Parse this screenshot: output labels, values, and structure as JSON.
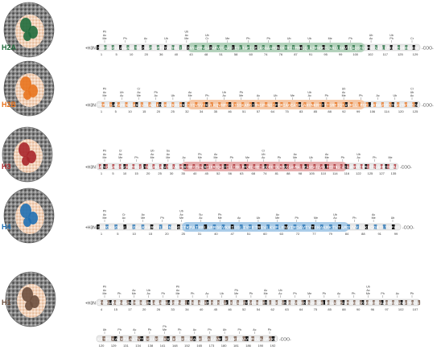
{
  "histones": [
    {
      "id": "h2a",
      "label": "H2A",
      "color": "#1f6b3c",
      "light": "#a9cdb3",
      "sequence": "SGRGKQGGKARAKAKTRSSRAGLQFPVGRVHRLLRKGNYAERVGAGAPVYLAAVLEYLTAEILELAGNAARDNKKTRIIPRHLQLAIRNDEELNKLLGKVTIAQGGVLPNIQAVLLPKKTESHHKAKGK",
      "numbers": [
        "1",
        "5",
        "10",
        "20",
        "36",
        "40",
        "43",
        "48",
        "51",
        "58",
        "60",
        "74",
        "76",
        "87",
        "91",
        "95",
        "99",
        "100",
        "102",
        "117",
        "125",
        "129"
      ],
      "mods": [
        [
          "Me",
          "Ac",
          "Ph"
        ],
        [
          "Ph"
        ],
        [
          "Ac"
        ],
        [
          "Ub"
        ],
        [
          "Me",
          "Ac",
          "Ub"
        ],
        [
          "Cr",
          "Ub"
        ],
        [
          "Me"
        ],
        [
          "Ph"
        ],
        [
          "Ph"
        ],
        [
          "Ub"
        ],
        [
          "Ub"
        ],
        [
          "Me"
        ],
        [
          "Ph"
        ],
        [
          "Ac",
          "Ub"
        ],
        [
          "Ph",
          "Ub"
        ],
        [
          "Cr"
        ]
      ],
      "nterm": "+H3N",
      "cterm": "-COO-"
    },
    {
      "id": "h2b",
      "label": "H2B",
      "color": "#e8731d",
      "light": "#f6c29b",
      "sequence": "PEPAKSAPAPKKGSKKAVTKAQKKDGKKRKRSRKESYSVYVYKVLKQVHPDTGISSKAMGIMNSFVNDIFERIAGEASRLAHYNKRSTITSREIQTAVRLLLPGELAKHAVSEGTKAVTKYTSSK",
      "numbers": [
        "1",
        "5",
        "10",
        "15",
        "20",
        "25",
        "32",
        "34",
        "35",
        "46",
        "51",
        "57",
        "64",
        "75",
        "83",
        "85",
        "88",
        "92",
        "99",
        "106",
        "114",
        "120",
        "125"
      ],
      "mods": [
        [
          "Me",
          "Ac",
          "Ph"
        ],
        [
          "Ac",
          "Ub"
        ],
        [
          "Me",
          "Ac",
          "Cr"
        ],
        [
          "Ac",
          "Ph"
        ],
        [
          "Ub"
        ],
        [
          "Me",
          "Ac"
        ],
        [
          "Ph"
        ],
        [
          "Ac",
          "Ub"
        ],
        [
          "Me",
          "Ph"
        ],
        [
          "Ac"
        ],
        [
          "Ub"
        ],
        [
          "Me"
        ],
        [
          "Ac",
          "Ub"
        ],
        [
          "Ph"
        ],
        [
          "Me",
          "Ac",
          "Ub"
        ],
        [
          "Ph"
        ],
        [
          "Ac"
        ],
        [
          "Ub"
        ],
        [
          "Ac",
          "Ub",
          "Cr"
        ]
      ],
      "nterm": "+H3N",
      "cterm": "-COO-"
    },
    {
      "id": "h3",
      "label": "H3",
      "color": "#a8262b",
      "light": "#e3a3a3",
      "sequence": "ARTKQTARKSTGGKAPRKQLATKAARKSAPATGGVKKPHRYRPGTVALREIRRYQKSTELLIRKLPFQRLVREIAQDFKTDLRFQSSAVMALQEASEAYLVGLFEDTNLCAIHAKRVTIMPKDIQLARRIRGERA",
      "numbers": [
        "1",
        "5",
        "10",
        "15",
        "20",
        "25",
        "30",
        "35",
        "40",
        "45",
        "52",
        "56",
        "63",
        "68",
        "74",
        "81",
        "88",
        "98",
        "105",
        "110",
        "114",
        "116",
        "122",
        "125",
        "127",
        "135"
      ],
      "mods": [
        [
          "Me",
          "Ac",
          "Ph"
        ],
        [
          "Me",
          "Ac",
          "Cr"
        ],
        [
          "Ph"
        ],
        [
          "Me",
          "Ac",
          "Ub"
        ],
        [
          "Me",
          "Ac",
          "Su"
        ],
        [
          "Ac"
        ],
        [
          "Me",
          "Ph"
        ],
        [
          "Me",
          "Ac"
        ],
        [
          "Ph"
        ],
        [
          "Me"
        ],
        [
          "Ac",
          "Ub",
          "Cr"
        ],
        [
          "Ph"
        ],
        [
          "Me",
          "Ac"
        ],
        [
          "Ub"
        ],
        [
          "Me",
          "Ac"
        ],
        [
          "Ph"
        ],
        [
          "Ac",
          "Ub"
        ],
        [
          "Ph"
        ],
        [
          "Me"
        ]
      ],
      "nterm": "+H3N",
      "cterm": "-COO-"
    },
    {
      "id": "h4",
      "label": "H4",
      "color": "#1f6fb2",
      "light": "#9ec6e6",
      "sequence": "SGRGKGGKGLGKGGAKRHRKVLRDNIQGITKPAIRRLARRGGVKRISGLIYEETRGVLKVFLENVIRDAVTYTEHAKRKTVTAMDVVYALKRQGRTLYGFGG",
      "numbers": [
        "1",
        "5",
        "10",
        "15",
        "20",
        "25",
        "31",
        "40",
        "47",
        "51",
        "60",
        "63",
        "72",
        "77",
        "79",
        "84",
        "88",
        "91",
        "99"
      ],
      "mods": [
        [
          "Me",
          "Ac",
          "Ph"
        ],
        [
          "Ac",
          "Cr"
        ],
        [
          "Me",
          "Ac"
        ],
        [
          "Ph"
        ],
        [
          "Me",
          "Ac",
          "Ub"
        ],
        [
          "Ac",
          "Su"
        ],
        [
          "Me",
          "Ph"
        ],
        [
          "Ac"
        ],
        [
          "Ub"
        ],
        [
          "Me",
          "Ac"
        ],
        [
          "Ph"
        ],
        [
          "Me"
        ],
        [
          "Ac",
          "Ub"
        ],
        [
          "Ph"
        ],
        [
          "Me",
          "Ac"
        ],
        [
          "Ub"
        ]
      ],
      "nterm": "+H3N",
      "cterm": "-COO-"
    },
    {
      "id": "h1",
      "label": "H1",
      "color": "#6b4e3d",
      "light": "#b9a192",
      "sequence": "SETAPAAPAAPAPAEKTPVKKKARKSAGAAKRKASGPPVSELITKAVAASKERSGVSLAALKKALAAAGYDVEKNNSRIKLGLKSLVSKGTLVQTKGTGASGSFKLNKKAASGEAKPKVKKAGGTKPKKPVGAAKKPKKAAGGATPKKSAKKTPKKAKKPAAATVTKKVAKSPKKAKVAKPKKAAKSAAKAVKPKAAKPKVVKPKKAAPKKK",
      "numbers": [
        "4",
        "15",
        "17",
        "20",
        "26",
        "33",
        "34",
        "40",
        "45",
        "46",
        "52",
        "54",
        "62",
        "63",
        "64",
        "75",
        "85",
        "88",
        "90",
        "96",
        "97",
        "102",
        "107",
        "120",
        "129",
        "131",
        "134",
        "138",
        "141",
        "148",
        "152",
        "165",
        "173",
        "180",
        "181",
        "186",
        "190",
        "192"
      ],
      "mods": [
        [
          "Me",
          "Ac",
          "Ph"
        ],
        [
          "Ph"
        ],
        [
          "Me",
          "Ac"
        ],
        [
          "Ac",
          "Ub"
        ],
        [
          "Ph"
        ],
        [
          "Me",
          "Ac",
          "Ph"
        ],
        [
          "Ph"
        ],
        [
          "Ac"
        ],
        [
          "Ub"
        ],
        [
          "Me",
          "Ph"
        ],
        [
          "Ph"
        ],
        [
          "Me",
          "Ac"
        ],
        [
          "Ac",
          "Ub"
        ],
        [
          "Ph"
        ],
        [
          "Me"
        ],
        [
          "Ph"
        ],
        [
          "Ac"
        ],
        [
          "Ph"
        ],
        [
          "Me",
          "Ac",
          "Ub"
        ],
        [
          "Ph"
        ],
        [
          "Ac"
        ],
        [
          "Ph"
        ],
        [
          "Ub"
        ],
        [
          "Ph"
        ],
        [
          "Ac"
        ],
        [
          "Ph"
        ],
        [
          "Me",
          "Ph"
        ],
        [
          "Ph"
        ],
        [
          "Ac"
        ],
        [
          "Ph"
        ],
        [
          "Ub"
        ],
        [
          "Ph"
        ],
        [
          "Ac"
        ],
        [
          "Ph"
        ]
      ],
      "nterm": "+H3N",
      "cterm": "-COO-"
    }
  ]
}
